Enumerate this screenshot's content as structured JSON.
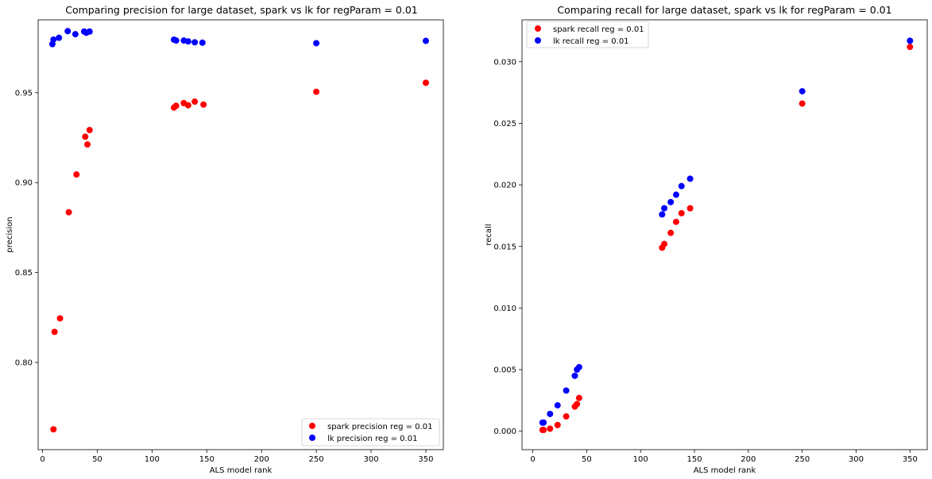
{
  "chart_data": [
    {
      "type": "scatter",
      "title": "Comparing precision  for large dataset, spark vs lk for regParam = 0.01",
      "xlabel": "ALS model rank",
      "ylabel": "precision",
      "xlim": [
        -4,
        366
      ],
      "ylim": [
        0.7515,
        0.9905
      ],
      "xticks": [
        0,
        50,
        100,
        150,
        200,
        250,
        300,
        350
      ],
      "xtick_labels": [
        "0",
        "50",
        "100",
        "150",
        "200",
        "250",
        "300",
        "350"
      ],
      "yticks": [
        0.8,
        0.85,
        0.9,
        0.95
      ],
      "ytick_labels": [
        "0.80",
        "0.85",
        "0.90",
        "0.95"
      ],
      "grid": false,
      "legend_position": "lower-right",
      "series": [
        {
          "name": "spark precision  reg = 0.01",
          "color": "#ff0000",
          "points": [
            [
              10,
              0.7628
            ],
            [
              11,
              0.817
            ],
            [
              16,
              0.8245
            ],
            [
              24,
              0.8835
            ],
            [
              31,
              0.9045
            ],
            [
              39,
              0.9255
            ],
            [
              41,
              0.9212
            ],
            [
              43,
              0.9292
            ],
            [
              120,
              0.9417
            ],
            [
              122,
              0.9427
            ],
            [
              129,
              0.9442
            ],
            [
              133,
              0.943
            ],
            [
              139,
              0.945
            ],
            [
              147,
              0.9434
            ],
            [
              250,
              0.9505
            ],
            [
              350,
              0.9555
            ]
          ]
        },
        {
          "name": "lk precision  reg = 0.01",
          "color": "#0000ff",
          "points": [
            [
              9,
              0.977
            ],
            [
              10,
              0.9795
            ],
            [
              15,
              0.9805
            ],
            [
              23,
              0.9842
            ],
            [
              30,
              0.9825
            ],
            [
              38,
              0.984
            ],
            [
              40,
              0.9833
            ],
            [
              43,
              0.984
            ],
            [
              120,
              0.9795
            ],
            [
              122,
              0.979
            ],
            [
              129,
              0.979
            ],
            [
              133,
              0.9785
            ],
            [
              139,
              0.978
            ],
            [
              146,
              0.9778
            ],
            [
              250,
              0.9775
            ],
            [
              350,
              0.9788
            ]
          ]
        }
      ]
    },
    {
      "type": "scatter",
      "title": "Comparing recall  for large dataset, spark vs lk for regParam = 0.01",
      "xlabel": "ALS model rank",
      "ylabel": "recall",
      "xlim": [
        -10,
        366
      ],
      "ylim": [
        -0.0015,
        0.0334
      ],
      "xticks": [
        0,
        50,
        100,
        150,
        200,
        250,
        300,
        350
      ],
      "xtick_labels": [
        "0",
        "50",
        "100",
        "150",
        "200",
        "250",
        "300",
        "350"
      ],
      "yticks": [
        0.0,
        0.005,
        0.01,
        0.015,
        0.02,
        0.025,
        0.03
      ],
      "ytick_labels": [
        "0.000",
        "0.005",
        "0.010",
        "0.015",
        "0.020",
        "0.025",
        "0.030"
      ],
      "grid": false,
      "legend_position": "upper-left",
      "series": [
        {
          "name": "spark recall reg = 0.01",
          "color": "#ff0000",
          "points": [
            [
              9,
              0.0001
            ],
            [
              10,
              0.0001
            ],
            [
              16,
              0.0002
            ],
            [
              23,
              0.0005
            ],
            [
              31,
              0.0012
            ],
            [
              39,
              0.002
            ],
            [
              41,
              0.0022
            ],
            [
              43,
              0.0027
            ],
            [
              120,
              0.0149
            ],
            [
              122,
              0.0152
            ],
            [
              128,
              0.0161
            ],
            [
              133,
              0.017
            ],
            [
              138,
              0.0177
            ],
            [
              146,
              0.0181
            ],
            [
              250,
              0.0266
            ],
            [
              350,
              0.0312
            ]
          ]
        },
        {
          "name": "lk recall reg = 0.01",
          "color": "#0000ff",
          "points": [
            [
              9,
              0.0007
            ],
            [
              10,
              0.0007
            ],
            [
              16,
              0.0014
            ],
            [
              23,
              0.0021
            ],
            [
              31,
              0.0033
            ],
            [
              39,
              0.0045
            ],
            [
              41,
              0.005
            ],
            [
              43,
              0.0052
            ],
            [
              120,
              0.0176
            ],
            [
              122,
              0.0181
            ],
            [
              128,
              0.0186
            ],
            [
              133,
              0.0192
            ],
            [
              138,
              0.0199
            ],
            [
              146,
              0.0205
            ],
            [
              250,
              0.0276
            ],
            [
              350,
              0.0317
            ]
          ]
        }
      ]
    }
  ]
}
